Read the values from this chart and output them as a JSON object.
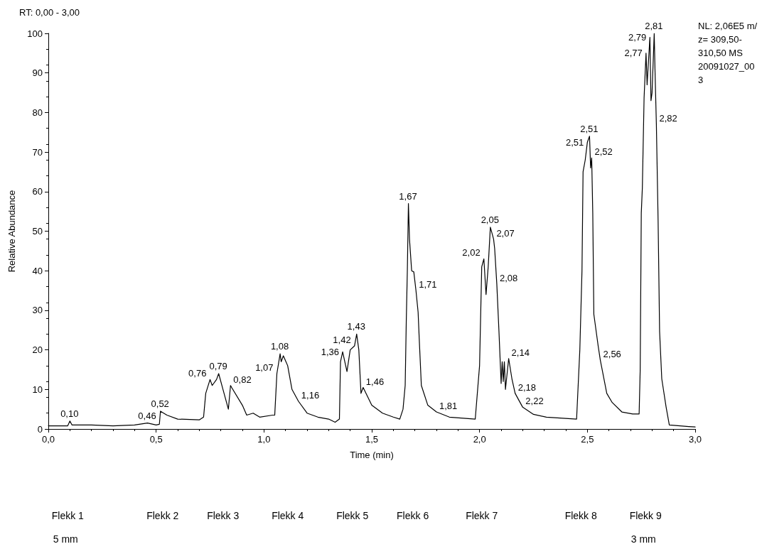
{
  "chart_data": {
    "type": "line",
    "title": "RT: 0,00 - 3,00",
    "xlabel": "Time (min)",
    "ylabel": "Relative Abundance",
    "x": [
      0,
      0.09,
      0.1,
      0.11,
      0.2,
      0.3,
      0.4,
      0.46,
      0.5,
      0.515,
      0.52,
      0.55,
      0.6,
      0.7,
      0.72,
      0.73,
      0.75,
      0.76,
      0.78,
      0.79,
      0.81,
      0.835,
      0.845,
      0.85,
      0.9,
      0.92,
      0.95,
      0.98,
      1.04,
      1.05,
      1.06,
      1.075,
      1.08,
      1.09,
      1.11,
      1.13,
      1.16,
      1.2,
      1.25,
      1.3,
      1.33,
      1.35,
      1.355,
      1.365,
      1.385,
      1.4,
      1.42,
      1.43,
      1.44,
      1.45,
      1.46,
      1.5,
      1.55,
      1.6,
      1.63,
      1.645,
      1.655,
      1.66,
      1.665,
      1.67,
      1.675,
      1.685,
      1.695,
      1.705,
      1.715,
      1.72,
      1.73,
      1.76,
      1.8,
      1.86,
      1.98,
      2,
      2.01,
      2.02,
      2.03,
      2.04,
      2.05,
      2.065,
      2.07,
      2.08,
      2.09,
      2.1,
      2.105,
      2.11,
      2.115,
      2.12,
      2.135,
      2.15,
      2.165,
      2.2,
      2.25,
      2.31,
      2.45,
      2.465,
      2.475,
      2.48,
      2.49,
      2.5,
      2.51,
      2.515,
      2.52,
      2.525,
      2.53,
      2.55,
      2.56,
      2.59,
      2.615,
      2.66,
      2.71,
      2.74,
      2.745,
      2.75,
      2.755,
      2.763,
      2.772,
      2.777,
      2.79,
      2.795,
      2.8,
      2.81,
      2.814,
      2.82,
      2.828,
      2.835,
      2.845,
      2.865,
      2.88,
      2.97,
      3
    ],
    "series": [
      {
        "color": "#000000",
        "values": [
          0.8,
          0.8,
          2,
          1,
          1,
          0.8,
          1,
          1.5,
          1,
          1.2,
          4.5,
          3.5,
          2.5,
          2.3,
          3,
          9,
          12.5,
          11,
          12.5,
          14,
          10,
          5,
          11,
          10.5,
          6,
          3.5,
          4,
          3,
          3.5,
          3.5,
          14,
          19,
          17,
          18.5,
          16,
          10,
          7,
          4,
          3,
          2.5,
          1.7,
          2.5,
          17,
          19.5,
          14.5,
          20,
          21,
          24,
          20,
          9,
          10.5,
          6,
          4,
          3,
          2.5,
          5,
          11,
          27,
          40,
          57,
          48,
          40,
          39.7,
          35,
          29.5,
          23,
          11,
          6,
          4.3,
          3,
          2.5,
          16,
          41,
          43,
          34,
          41,
          51,
          48,
          45.6,
          36.6,
          24.6,
          11.5,
          17,
          12,
          17,
          10,
          17.8,
          12.7,
          9,
          5.5,
          3.7,
          3,
          2.5,
          20,
          40,
          65,
          68,
          72.5,
          74,
          66,
          68.5,
          54.6,
          29,
          21,
          17.4,
          9,
          6.7,
          4.3,
          3.8,
          3.8,
          15,
          54.6,
          61,
          83.7,
          95,
          87,
          99,
          83,
          85,
          100,
          90,
          77,
          52.8,
          24.6,
          12.7,
          5.6,
          1,
          0.6,
          0.5
        ]
      }
    ],
    "xlim": [
      0,
      3
    ],
    "xticks": [
      {
        "value": 0,
        "label": "0,0"
      },
      {
        "value": 0.5,
        "label": "0,5"
      },
      {
        "value": 1,
        "label": "1,0"
      },
      {
        "value": 1.5,
        "label": "1,5"
      },
      {
        "value": 2,
        "label": "2,0"
      },
      {
        "value": 2.5,
        "label": "2,5"
      },
      {
        "value": 3,
        "label": "3,0"
      }
    ],
    "ylim": [
      0,
      100
    ],
    "yticks": [
      0,
      10,
      20,
      30,
      40,
      50,
      60,
      70,
      80,
      90,
      100
    ],
    "marker": "none",
    "line_style": "solid",
    "annotations": [
      {
        "text": "2,81",
        "x": 2.81,
        "y": 100
      },
      {
        "text": "2,79",
        "x": 2.79,
        "y": 99
      },
      {
        "text": "2,77",
        "x": 2.772,
        "y": 95
      },
      {
        "text": "2,82",
        "x": 2.82,
        "y": 77
      },
      {
        "text": "2,51",
        "x": 2.51,
        "y": 74
      },
      {
        "text": "2,51",
        "x": 2.5,
        "y": 72.5
      },
      {
        "text": "2,52",
        "x": 2.52,
        "y": 68.5
      },
      {
        "text": "2,56",
        "x": 2.56,
        "y": 17.4
      },
      {
        "text": "1,67",
        "x": 1.67,
        "y": 57
      },
      {
        "text": "1,71",
        "x": 1.705,
        "y": 35
      },
      {
        "text": "1,81",
        "x": 1.8,
        "y": 4.3
      },
      {
        "text": "2,05",
        "x": 2.05,
        "y": 51
      },
      {
        "text": "2,07",
        "x": 2.065,
        "y": 48
      },
      {
        "text": "2,02",
        "x": 2.02,
        "y": 43
      },
      {
        "text": "2,08",
        "x": 2.08,
        "y": 36.6
      },
      {
        "text": "2,14",
        "x": 2.135,
        "y": 17.8
      },
      {
        "text": "2,18",
        "x": 2.165,
        "y": 9
      },
      {
        "text": "2,22",
        "x": 2.2,
        "y": 5.5
      },
      {
        "text": "1,43",
        "x": 1.43,
        "y": 24
      },
      {
        "text": "1,42",
        "x": 1.42,
        "y": 21
      },
      {
        "text": "1,36",
        "x": 1.365,
        "y": 19.5
      },
      {
        "text": "1,46",
        "x": 1.46,
        "y": 10.5
      },
      {
        "text": "1,08",
        "x": 1.075,
        "y": 19
      },
      {
        "text": "1,07",
        "x": 1.06,
        "y": 14
      },
      {
        "text": "1,16",
        "x": 1.16,
        "y": 7
      },
      {
        "text": "0,79",
        "x": 0.79,
        "y": 14
      },
      {
        "text": "0,76",
        "x": 0.75,
        "y": 12.5
      },
      {
        "text": "0,82",
        "x": 0.845,
        "y": 11
      },
      {
        "text": "0,52",
        "x": 0.52,
        "y": 4.5
      },
      {
        "text": "0,46",
        "x": 0.46,
        "y": 1.5
      },
      {
        "text": "0,10",
        "x": 0.1,
        "y": 2
      },
      "NL: 2,06E5 m/z= 309,50- 310,50 MS 20091027_003",
      "Flekk 1",
      "5 mm",
      "Flekk 2",
      "Flekk 3",
      "Flekk 4",
      "Flekk 5",
      "Flekk 6",
      "Flekk 7",
      "Flekk 8",
      "Flekk 9",
      "3 mm"
    ]
  }
}
